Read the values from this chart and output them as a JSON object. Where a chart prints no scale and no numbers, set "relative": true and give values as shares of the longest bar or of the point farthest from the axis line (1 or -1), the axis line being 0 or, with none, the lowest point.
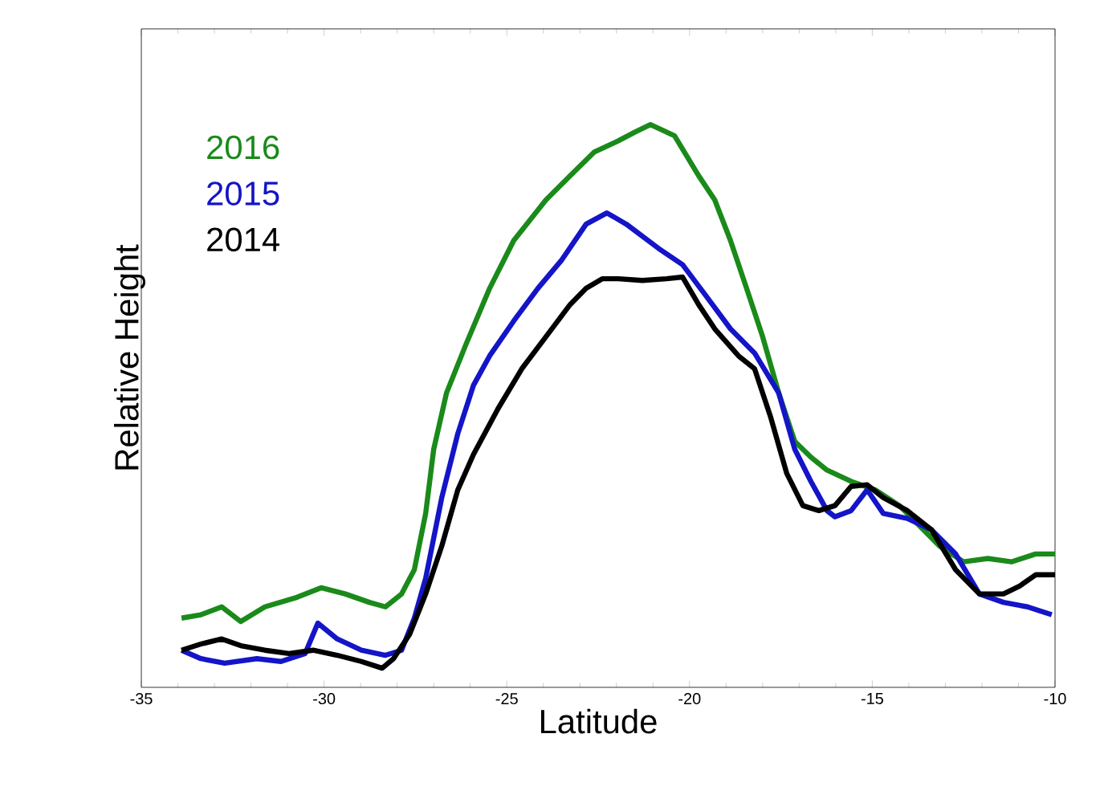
{
  "chart_data": {
    "type": "line",
    "xlabel": "Latitude",
    "ylabel": "Relative Height",
    "relative": true,
    "xlim": [
      -35,
      -10
    ],
    "xticks": [
      -35,
      -30,
      -25,
      -20,
      -15,
      -10
    ],
    "legend": "top left",
    "grid": false,
    "series": [
      {
        "name": "2016",
        "color": "#1a8a1a",
        "x": [
          -33.9,
          -33.37,
          -32.8,
          -32.28,
          -31.62,
          -30.74,
          -30.08,
          -29.42,
          -28.76,
          -28.32,
          -27.88,
          -27.53,
          -27.22,
          -27.0,
          -26.65,
          -26.12,
          -25.47,
          -24.81,
          -23.93,
          -23.27,
          -22.61,
          -21.95,
          -21.51,
          -21.07,
          -20.41,
          -19.75,
          -19.31,
          -18.88,
          -18.44,
          -18.0,
          -17.56,
          -17.12,
          -16.68,
          -16.24,
          -15.58,
          -14.92,
          -14.26,
          -13.6,
          -13.16,
          -12.5,
          -11.84,
          -11.19,
          -10.53,
          -10.0
        ],
        "values": [
          0.123,
          0.129,
          0.143,
          0.117,
          0.143,
          0.16,
          0.177,
          0.166,
          0.151,
          0.143,
          0.166,
          0.209,
          0.309,
          0.423,
          0.523,
          0.609,
          0.709,
          0.794,
          0.866,
          0.909,
          0.951,
          0.971,
          0.986,
          1.0,
          0.98,
          0.909,
          0.866,
          0.794,
          0.709,
          0.623,
          0.523,
          0.437,
          0.409,
          0.386,
          0.366,
          0.351,
          0.323,
          0.28,
          0.251,
          0.223,
          0.229,
          0.223,
          0.237,
          0.237
        ]
      },
      {
        "name": "2015",
        "color": "#1414c8",
        "x": [
          -33.9,
          -33.37,
          -32.72,
          -31.84,
          -31.18,
          -30.52,
          -30.17,
          -29.64,
          -28.98,
          -28.32,
          -27.88,
          -27.53,
          -27.22,
          -26.78,
          -26.34,
          -25.91,
          -25.47,
          -24.81,
          -24.15,
          -23.49,
          -22.83,
          -22.26,
          -21.73,
          -20.85,
          -20.19,
          -19.53,
          -18.88,
          -18.22,
          -17.56,
          -17.12,
          -16.68,
          -16.24,
          -16.02,
          -15.58,
          -15.14,
          -14.7,
          -14.04,
          -13.38,
          -12.72,
          -12.07,
          -11.41,
          -10.75,
          -10.09
        ],
        "values": [
          0.066,
          0.051,
          0.043,
          0.051,
          0.046,
          0.06,
          0.114,
          0.086,
          0.066,
          0.057,
          0.066,
          0.123,
          0.194,
          0.337,
          0.451,
          0.537,
          0.589,
          0.651,
          0.709,
          0.76,
          0.823,
          0.843,
          0.823,
          0.78,
          0.751,
          0.694,
          0.637,
          0.594,
          0.523,
          0.423,
          0.366,
          0.314,
          0.303,
          0.314,
          0.351,
          0.309,
          0.3,
          0.28,
          0.237,
          0.166,
          0.151,
          0.143,
          0.129
        ]
      },
      {
        "name": "2014",
        "color": "#000000",
        "x": [
          -33.9,
          -33.37,
          -32.8,
          -32.28,
          -31.62,
          -30.96,
          -30.3,
          -29.64,
          -28.98,
          -28.41,
          -28.1,
          -27.66,
          -27.22,
          -26.78,
          -26.34,
          -25.91,
          -25.25,
          -24.59,
          -23.93,
          -23.27,
          -22.83,
          -22.39,
          -21.95,
          -21.29,
          -20.63,
          -20.19,
          -19.75,
          -19.31,
          -18.66,
          -18.22,
          -17.78,
          -17.34,
          -16.9,
          -16.46,
          -16.02,
          -15.58,
          -15.14,
          -14.7,
          -14.04,
          -13.38,
          -12.72,
          -12.07,
          -11.41,
          -10.97,
          -10.53,
          -10.0
        ],
        "values": [
          0.066,
          0.077,
          0.086,
          0.074,
          0.066,
          0.06,
          0.066,
          0.057,
          0.046,
          0.034,
          0.051,
          0.094,
          0.166,
          0.251,
          0.351,
          0.414,
          0.494,
          0.566,
          0.623,
          0.68,
          0.709,
          0.726,
          0.726,
          0.723,
          0.726,
          0.729,
          0.68,
          0.637,
          0.589,
          0.566,
          0.48,
          0.38,
          0.323,
          0.314,
          0.323,
          0.357,
          0.36,
          0.337,
          0.314,
          0.28,
          0.209,
          0.166,
          0.166,
          0.18,
          0.2,
          0.2
        ]
      }
    ]
  }
}
